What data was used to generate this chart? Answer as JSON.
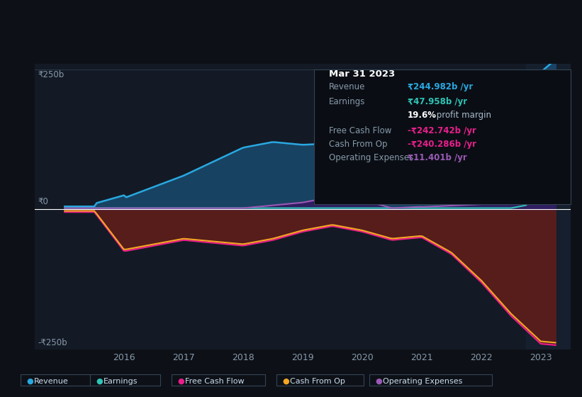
{
  "bg_color": "#0d1117",
  "chart_bg": "#131a25",
  "title": "Mar 31 2023",
  "ylabel_pos": "₹250b",
  "ylabel_neg": "-₹250b",
  "ylabel_zero": "₹0",
  "ylim": [
    -250,
    260
  ],
  "xlim": [
    2014.5,
    2023.5
  ],
  "xticks": [
    2016,
    2017,
    2018,
    2019,
    2020,
    2021,
    2022,
    2023
  ],
  "series": {
    "Revenue": {
      "color": "#29a8e0",
      "fill_color": "#1a4a6e",
      "legend_color": "#29a8e0"
    },
    "Earnings": {
      "color": "#2ec4b6",
      "legend_color": "#2ec4b6"
    },
    "FreeCashFlow": {
      "color": "#e91e8c",
      "fill_color": "#5a1a2a",
      "legend_color": "#e91e8c"
    },
    "CashFromOp": {
      "color": "#f5a623",
      "fill_color": "#5a2a1a",
      "legend_color": "#f5a623"
    },
    "OperatingExpenses": {
      "color": "#9b59b6",
      "fill_color": "#3a1a5a",
      "legend_color": "#9b59b6"
    }
  },
  "tooltip": {
    "date": "Mar 31 2023",
    "revenue_val": "₹244.982b",
    "earnings_val": "₹47.958b",
    "margin": "19.6%",
    "fcf_val": "-₹242.742b",
    "cashfromop_val": "-₹240.286b",
    "opex_val": "₹11.401b"
  },
  "legend_items": [
    {
      "label": "Revenue",
      "color": "#29a8e0"
    },
    {
      "label": "Earnings",
      "color": "#2ec4b6"
    },
    {
      "label": "Free Cash Flow",
      "color": "#e91e8c"
    },
    {
      "label": "Cash From Op",
      "color": "#f5a623"
    },
    {
      "label": "Operating Expenses",
      "color": "#9b59b6"
    }
  ]
}
